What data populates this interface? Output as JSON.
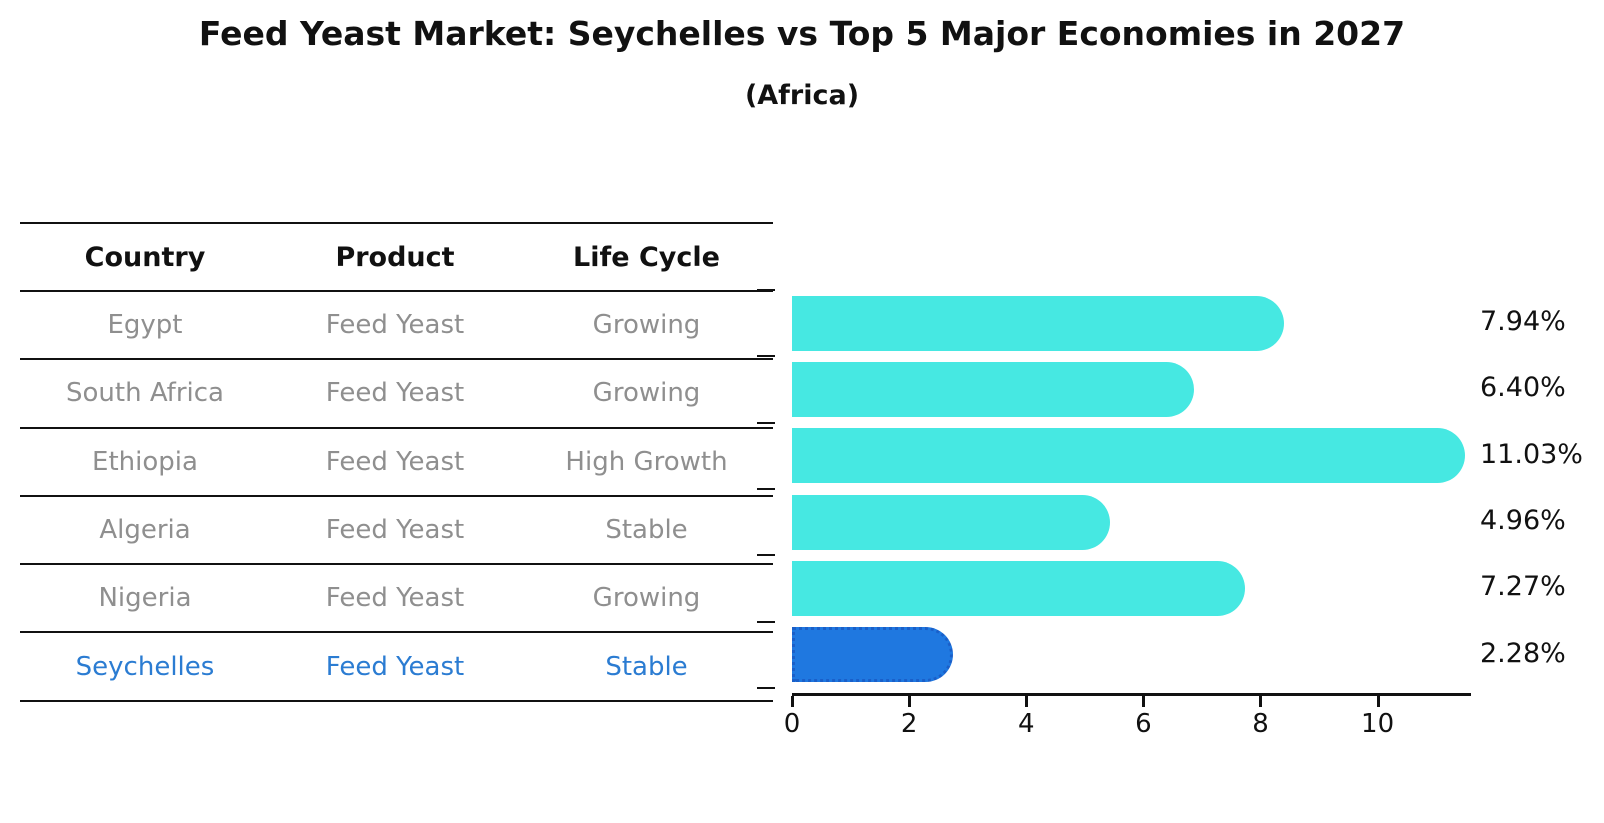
{
  "title": "Feed Yeast Market: Seychelles vs Top 5 Major Economies in 2027",
  "subtitle": "(Africa)",
  "table": {
    "headers": [
      "Country",
      "Product",
      "Life Cycle"
    ],
    "rows": [
      {
        "country": "Egypt",
        "product": "Feed Yeast",
        "life_cycle": "Growing",
        "highlight": false
      },
      {
        "country": "South Africa",
        "product": "Feed Yeast",
        "life_cycle": "Growing",
        "highlight": false
      },
      {
        "country": "Ethiopia",
        "product": "Feed Yeast",
        "life_cycle": "High Growth",
        "highlight": false
      },
      {
        "country": "Algeria",
        "product": "Feed Yeast",
        "life_cycle": "Stable",
        "highlight": false
      },
      {
        "country": "Nigeria",
        "product": "Feed Yeast",
        "life_cycle": "Growing",
        "highlight": false
      },
      {
        "country": "Seychelles",
        "product": "Feed Yeast",
        "life_cycle": "Stable",
        "highlight": true
      }
    ]
  },
  "chart_data": {
    "type": "bar",
    "orientation": "horizontal",
    "title": "Feed Yeast Market: Seychelles vs Top 5 Major Economies in 2027 (Africa)",
    "categories": [
      "Egypt",
      "South Africa",
      "Ethiopia",
      "Algeria",
      "Nigeria",
      "Seychelles"
    ],
    "values": [
      7.94,
      6.4,
      11.03,
      4.96,
      7.27,
      2.28
    ],
    "value_labels": [
      "7.94%",
      "6.40%",
      "11.03%",
      "4.96%",
      "7.27%",
      "2.28%"
    ],
    "xlabel": "",
    "ylabel": "",
    "xlim": [
      0,
      11.58
    ],
    "xticks": [
      0,
      2,
      4,
      6,
      8,
      10
    ],
    "grid": false,
    "legend": false,
    "highlight_index": 5,
    "bar_color": "#46E8E2",
    "highlight_color": "#1F78E0",
    "highlight_border_color": "#1A5FC9",
    "highlight_text_color": "#2B7CD2",
    "text_color": "#111111",
    "muted_text_color": "#8f8f8f"
  }
}
